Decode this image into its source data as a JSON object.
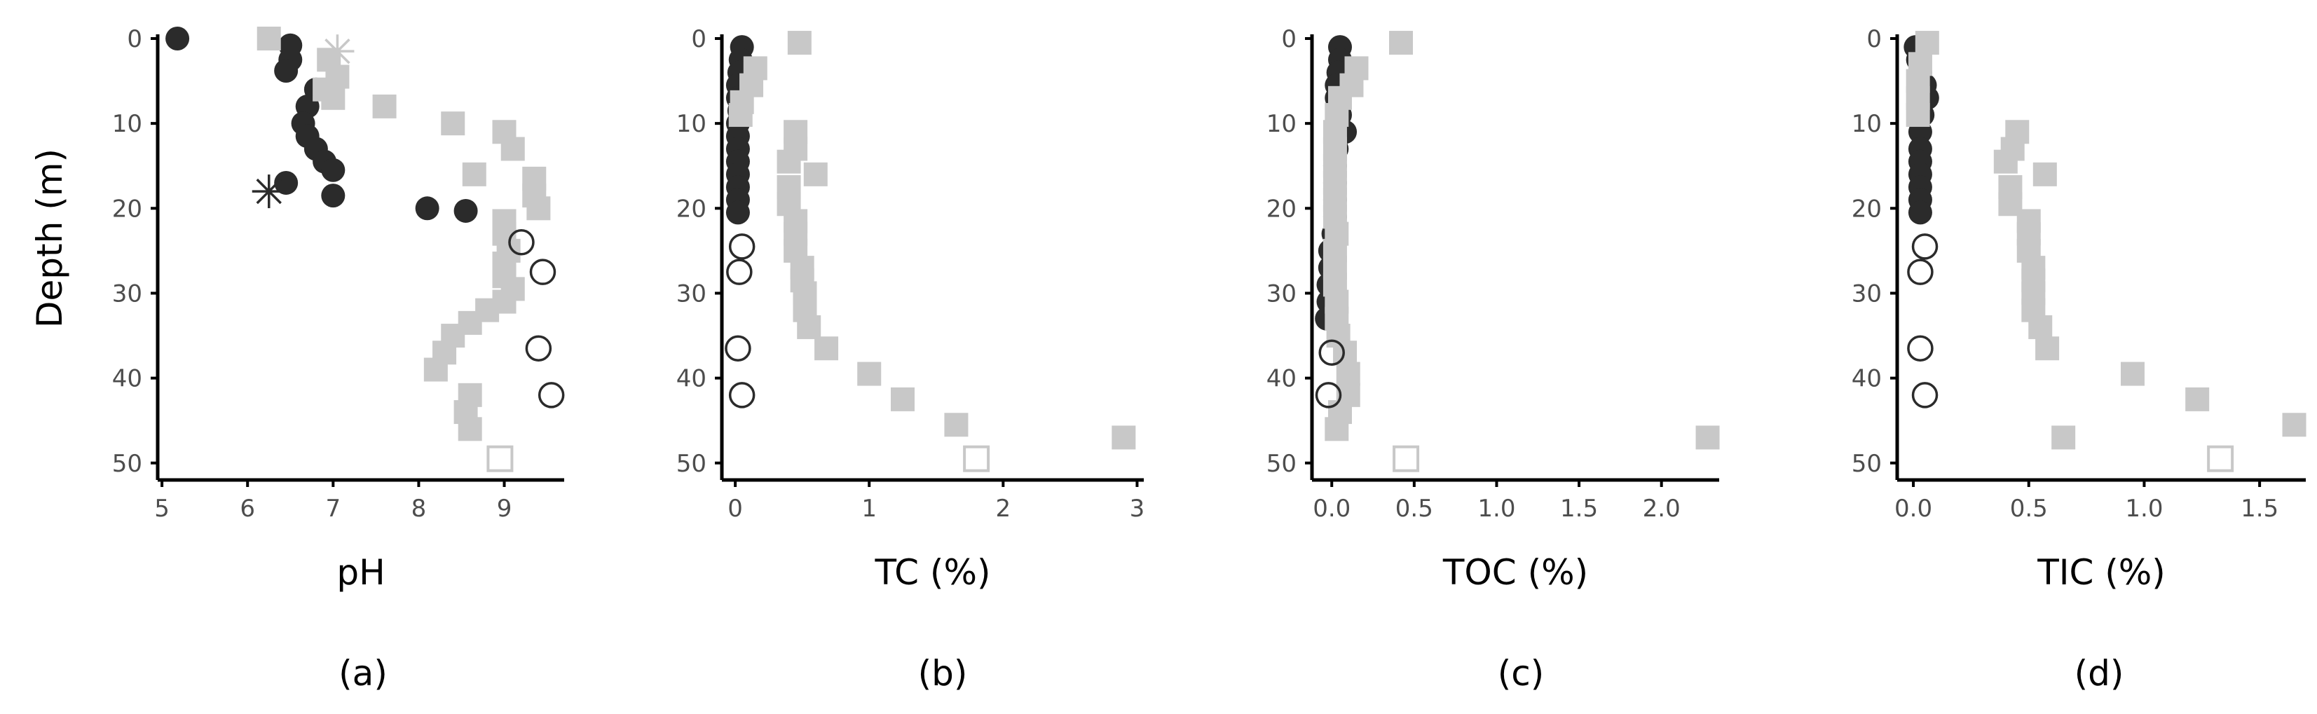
{
  "colors": {
    "dark": "#2b2b2b",
    "light": "#c8c8c8",
    "axis": "#000000",
    "tick_text": "#4d4d4d"
  },
  "chart_data": [
    {
      "type": "scatter",
      "panel_label": "(a)",
      "xlabel": "pH",
      "ylabel": "Depth (m)",
      "xlim": [
        4.95,
        9.7
      ],
      "ylim": [
        0,
        52
      ],
      "y_reversed": true,
      "xticks": [
        "5",
        "6",
        "7",
        "8",
        "9"
      ],
      "yticks": [
        "0",
        "10",
        "20",
        "30",
        "40",
        "50"
      ],
      "series": [
        {
          "marker": "filled-circle",
          "color": "dark",
          "points": [
            [
              5.18,
              0
            ],
            [
              6.5,
              0.8
            ],
            [
              6.5,
              2.5
            ],
            [
              6.45,
              3.8
            ],
            [
              6.8,
              6
            ],
            [
              6.7,
              8
            ],
            [
              6.65,
              10
            ],
            [
              6.7,
              11.5
            ],
            [
              6.8,
              13
            ],
            [
              6.9,
              14.5
            ],
            [
              7.0,
              15.5
            ],
            [
              6.45,
              17
            ],
            [
              7.0,
              18.5
            ],
            [
              8.1,
              20
            ],
            [
              8.55,
              20.3
            ]
          ]
        },
        {
          "marker": "asterisk",
          "color": "dark",
          "points": [
            [
              6.25,
              18
            ]
          ]
        },
        {
          "marker": "asterisk",
          "color": "light",
          "points": [
            [
              7.05,
              1.5
            ]
          ]
        },
        {
          "marker": "filled-square",
          "color": "light",
          "points": [
            [
              6.25,
              0
            ],
            [
              6.95,
              2.5
            ],
            [
              7.05,
              4.5
            ],
            [
              6.9,
              6
            ],
            [
              7.0,
              7
            ],
            [
              7.6,
              8
            ],
            [
              8.4,
              10
            ],
            [
              9.0,
              11
            ],
            [
              9.1,
              13
            ],
            [
              8.65,
              16
            ],
            [
              9.35,
              16.5
            ],
            [
              9.35,
              18.5
            ],
            [
              9.4,
              20
            ],
            [
              9.0,
              21.5
            ],
            [
              9.0,
              23
            ],
            [
              9.05,
              25
            ],
            [
              9.0,
              26.5
            ],
            [
              9.0,
              28
            ],
            [
              9.1,
              29.5
            ],
            [
              9.0,
              31
            ],
            [
              8.8,
              32
            ],
            [
              8.6,
              33.5
            ],
            [
              8.4,
              35
            ],
            [
              8.3,
              37
            ],
            [
              8.2,
              39
            ],
            [
              8.6,
              42
            ],
            [
              8.55,
              44
            ],
            [
              8.6,
              46
            ]
          ]
        },
        {
          "marker": "open-circle",
          "color": "dark",
          "points": [
            [
              9.2,
              24
            ],
            [
              9.45,
              27.5
            ],
            [
              9.4,
              36.5
            ],
            [
              9.55,
              42
            ]
          ]
        },
        {
          "marker": "open-square",
          "color": "light",
          "points": [
            [
              8.95,
              49.5
            ]
          ]
        }
      ]
    },
    {
      "type": "scatter",
      "panel_label": "(b)",
      "xlabel": "TC (%)",
      "ylabel": "",
      "xlim": [
        -0.1,
        3.05
      ],
      "ylim": [
        0,
        52
      ],
      "y_reversed": true,
      "xticks": [
        "0",
        "1",
        "2",
        "3"
      ],
      "yticks": [
        "0",
        "10",
        "20",
        "30",
        "40",
        "50"
      ],
      "series": [
        {
          "marker": "filled-circle",
          "color": "dark",
          "points": [
            [
              0.05,
              1
            ],
            [
              0.04,
              2.5
            ],
            [
              0.03,
              4
            ],
            [
              0.02,
              5.5
            ],
            [
              0.02,
              7
            ],
            [
              0.03,
              8.5
            ],
            [
              0.02,
              10
            ],
            [
              0.02,
              11.5
            ],
            [
              0.02,
              13
            ],
            [
              0.02,
              14.5
            ],
            [
              0.02,
              16
            ],
            [
              0.02,
              17.5
            ],
            [
              0.02,
              19
            ],
            [
              0.02,
              20.5
            ]
          ]
        },
        {
          "marker": "filled-square",
          "color": "light",
          "points": [
            [
              0.48,
              0.5
            ],
            [
              0.15,
              3.5
            ],
            [
              0.12,
              5.5
            ],
            [
              0.05,
              7.5
            ],
            [
              0.04,
              9
            ],
            [
              0.45,
              11
            ],
            [
              0.45,
              13
            ],
            [
              0.6,
              16
            ],
            [
              0.4,
              14.5
            ],
            [
              0.4,
              17.5
            ],
            [
              0.4,
              19.5
            ],
            [
              0.45,
              21.5
            ],
            [
              0.45,
              23
            ],
            [
              0.45,
              25
            ],
            [
              0.5,
              27
            ],
            [
              0.5,
              28.5
            ],
            [
              0.52,
              30
            ],
            [
              0.52,
              32
            ],
            [
              0.55,
              34
            ],
            [
              0.68,
              36.5
            ],
            [
              1.0,
              39.5
            ],
            [
              1.25,
              42.5
            ],
            [
              1.65,
              45.5
            ],
            [
              2.9,
              47
            ]
          ]
        },
        {
          "marker": "open-circle",
          "color": "dark",
          "points": [
            [
              0.05,
              24.5
            ],
            [
              0.03,
              27.5
            ],
            [
              0.02,
              36.5
            ],
            [
              0.05,
              42
            ]
          ]
        },
        {
          "marker": "open-square",
          "color": "light",
          "points": [
            [
              1.8,
              49.5
            ]
          ]
        }
      ]
    },
    {
      "type": "scatter",
      "panel_label": "(c)",
      "xlabel": "TOC (%)",
      "ylabel": "",
      "xlim": [
        -0.12,
        2.35
      ],
      "ylim": [
        0,
        52
      ],
      "y_reversed": true,
      "xticks": [
        "0.0",
        "0.5",
        "1.0",
        "1.5",
        "2.0"
      ],
      "yticks": [
        "0",
        "10",
        "20",
        "30",
        "40",
        "50"
      ],
      "series": [
        {
          "marker": "filled-circle",
          "color": "dark",
          "points": [
            [
              0.05,
              1
            ],
            [
              0.05,
              2.5
            ],
            [
              0.04,
              4
            ],
            [
              0.03,
              5.5
            ],
            [
              0.03,
              7
            ],
            [
              0.05,
              9
            ],
            [
              0.08,
              11
            ],
            [
              0.03,
              13
            ],
            [
              0.02,
              15
            ],
            [
              0.02,
              17
            ],
            [
              0.02,
              19
            ],
            [
              0.02,
              21
            ],
            [
              0.01,
              23
            ],
            [
              -0.01,
              25
            ],
            [
              -0.01,
              27
            ],
            [
              -0.02,
              29
            ],
            [
              -0.02,
              31
            ],
            [
              -0.03,
              33
            ]
          ]
        },
        {
          "marker": "filled-square",
          "color": "light",
          "points": [
            [
              0.42,
              0.5
            ],
            [
              0.15,
              3.5
            ],
            [
              0.12,
              5.5
            ],
            [
              0.05,
              7
            ],
            [
              0.03,
              9
            ],
            [
              0.02,
              11
            ],
            [
              0.02,
              13
            ],
            [
              0.02,
              15
            ],
            [
              0.02,
              17
            ],
            [
              0.02,
              19
            ],
            [
              0.02,
              21
            ],
            [
              0.03,
              23
            ],
            [
              0.02,
              25
            ],
            [
              0.02,
              27
            ],
            [
              0.02,
              29
            ],
            [
              0.03,
              31
            ],
            [
              0.03,
              33
            ],
            [
              0.04,
              35
            ],
            [
              0.08,
              37
            ],
            [
              0.1,
              39.5
            ],
            [
              0.1,
              42
            ],
            [
              0.05,
              44
            ],
            [
              0.03,
              46
            ],
            [
              2.28,
              47
            ]
          ]
        },
        {
          "marker": "open-circle",
          "color": "dark",
          "points": [
            [
              0.0,
              37
            ],
            [
              -0.02,
              42
            ]
          ]
        },
        {
          "marker": "open-square",
          "color": "light",
          "points": [
            [
              0.45,
              49.5
            ]
          ]
        }
      ]
    },
    {
      "type": "scatter",
      "panel_label": "(d)",
      "xlabel": "TIC (%)",
      "ylabel": "",
      "xlim": [
        -0.07,
        1.7
      ],
      "ylim": [
        0,
        52
      ],
      "y_reversed": true,
      "xticks": [
        "0.0",
        "0.5",
        "1.0",
        "1.5"
      ],
      "yticks": [
        "0",
        "10",
        "20",
        "30",
        "40",
        "50"
      ],
      "series": [
        {
          "marker": "filled-circle",
          "color": "dark",
          "points": [
            [
              0.01,
              1
            ],
            [
              0.02,
              2.5
            ],
            [
              0.03,
              4
            ],
            [
              0.05,
              5.5
            ],
            [
              0.06,
              7
            ],
            [
              0.04,
              9
            ],
            [
              0.03,
              11
            ],
            [
              0.03,
              13
            ],
            [
              0.03,
              14.5
            ],
            [
              0.03,
              16
            ],
            [
              0.03,
              17.5
            ],
            [
              0.03,
              19
            ],
            [
              0.03,
              20.5
            ]
          ]
        },
        {
          "marker": "filled-square",
          "color": "light",
          "points": [
            [
              0.06,
              0.5
            ],
            [
              0.03,
              3
            ],
            [
              0.02,
              5
            ],
            [
              0.02,
              7
            ],
            [
              0.02,
              9
            ],
            [
              0.45,
              11
            ],
            [
              0.43,
              13
            ],
            [
              0.4,
              14.5
            ],
            [
              0.57,
              16
            ],
            [
              0.42,
              17.5
            ],
            [
              0.42,
              19.5
            ],
            [
              0.5,
              21.5
            ],
            [
              0.5,
              23
            ],
            [
              0.5,
              25
            ],
            [
              0.52,
              27
            ],
            [
              0.52,
              28.5
            ],
            [
              0.52,
              30
            ],
            [
              0.52,
              32
            ],
            [
              0.55,
              34
            ],
            [
              0.58,
              36.5
            ],
            [
              0.95,
              39.5
            ],
            [
              1.23,
              42.5
            ],
            [
              0.65,
              47
            ],
            [
              1.65,
              45.5
            ]
          ]
        },
        {
          "marker": "open-circle",
          "color": "dark",
          "points": [
            [
              0.05,
              24.5
            ],
            [
              0.03,
              27.5
            ],
            [
              0.03,
              36.5
            ],
            [
              0.05,
              42
            ]
          ]
        },
        {
          "marker": "open-square",
          "color": "light",
          "points": [
            [
              1.33,
              49.5
            ]
          ]
        }
      ]
    }
  ]
}
